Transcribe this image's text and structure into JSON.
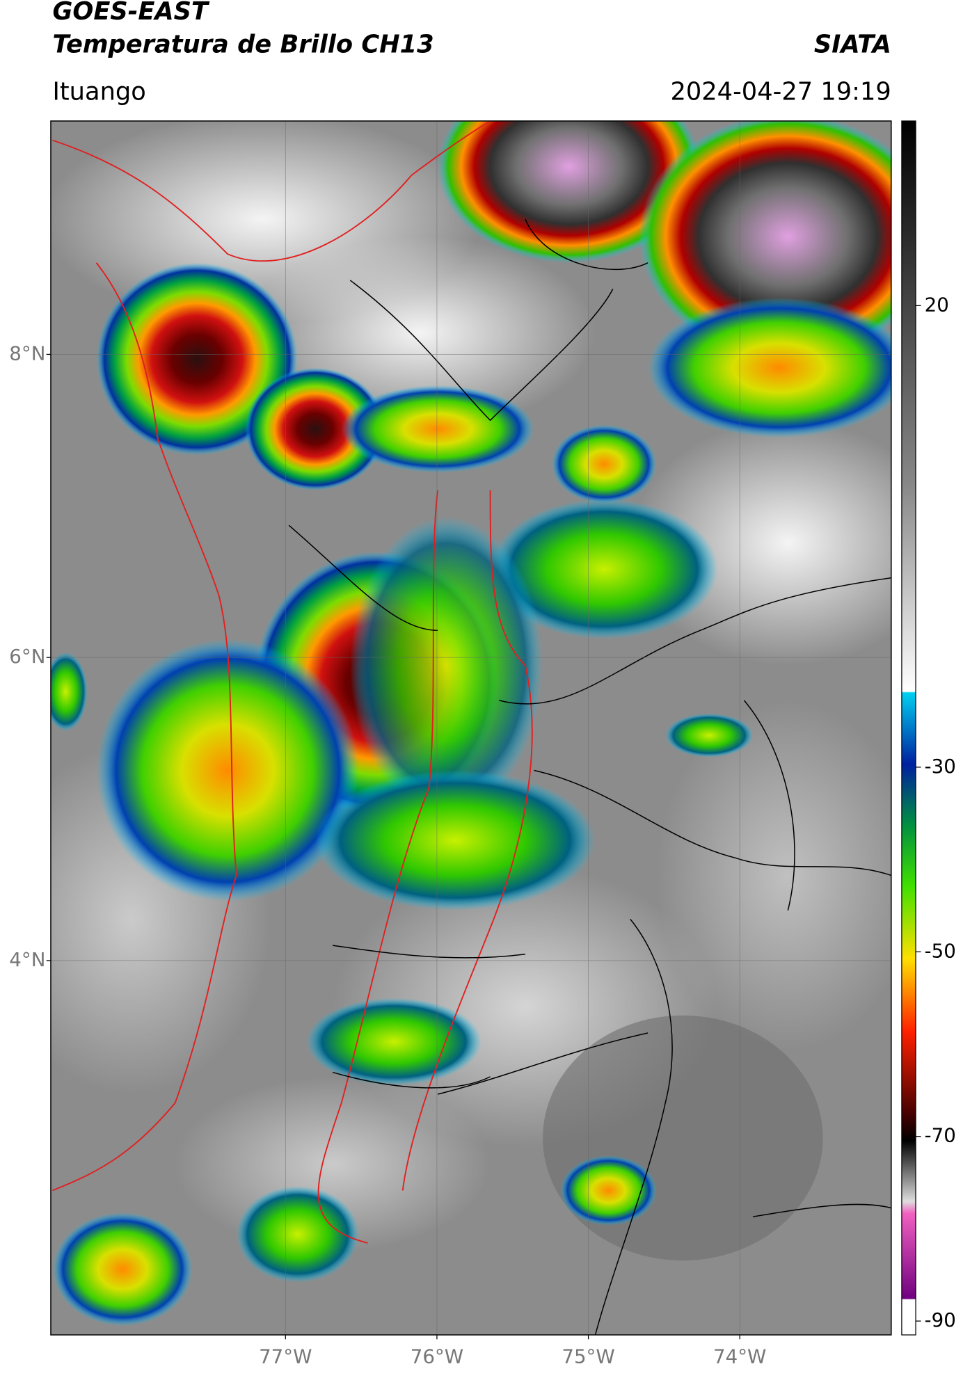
{
  "header": {
    "title": "GOES-EAST",
    "subtitle": "Temperatura de Brillo CH13",
    "brand": "SIATA",
    "location": "Ituango",
    "datetime": "2024-04-27 19:19"
  },
  "map": {
    "latlim": [
      1.53,
      9.54
    ],
    "lonlim": [
      -78.55,
      -73.0
    ],
    "latticks": [
      {
        "value": 8,
        "label": "8°N"
      },
      {
        "value": 6,
        "label": "6°N"
      },
      {
        "value": 4,
        "label": "4°N"
      }
    ],
    "lonticks": [
      {
        "value": -77,
        "label": "77°W"
      },
      {
        "value": -76,
        "label": "76°W"
      },
      {
        "value": -75,
        "label": "75°W"
      },
      {
        "value": -74,
        "label": "74°W"
      }
    ]
  },
  "colorbar": {
    "lim": [
      -91.5,
      40
    ],
    "ticks": [
      20,
      -30,
      -50,
      -70,
      -90
    ]
  }
}
